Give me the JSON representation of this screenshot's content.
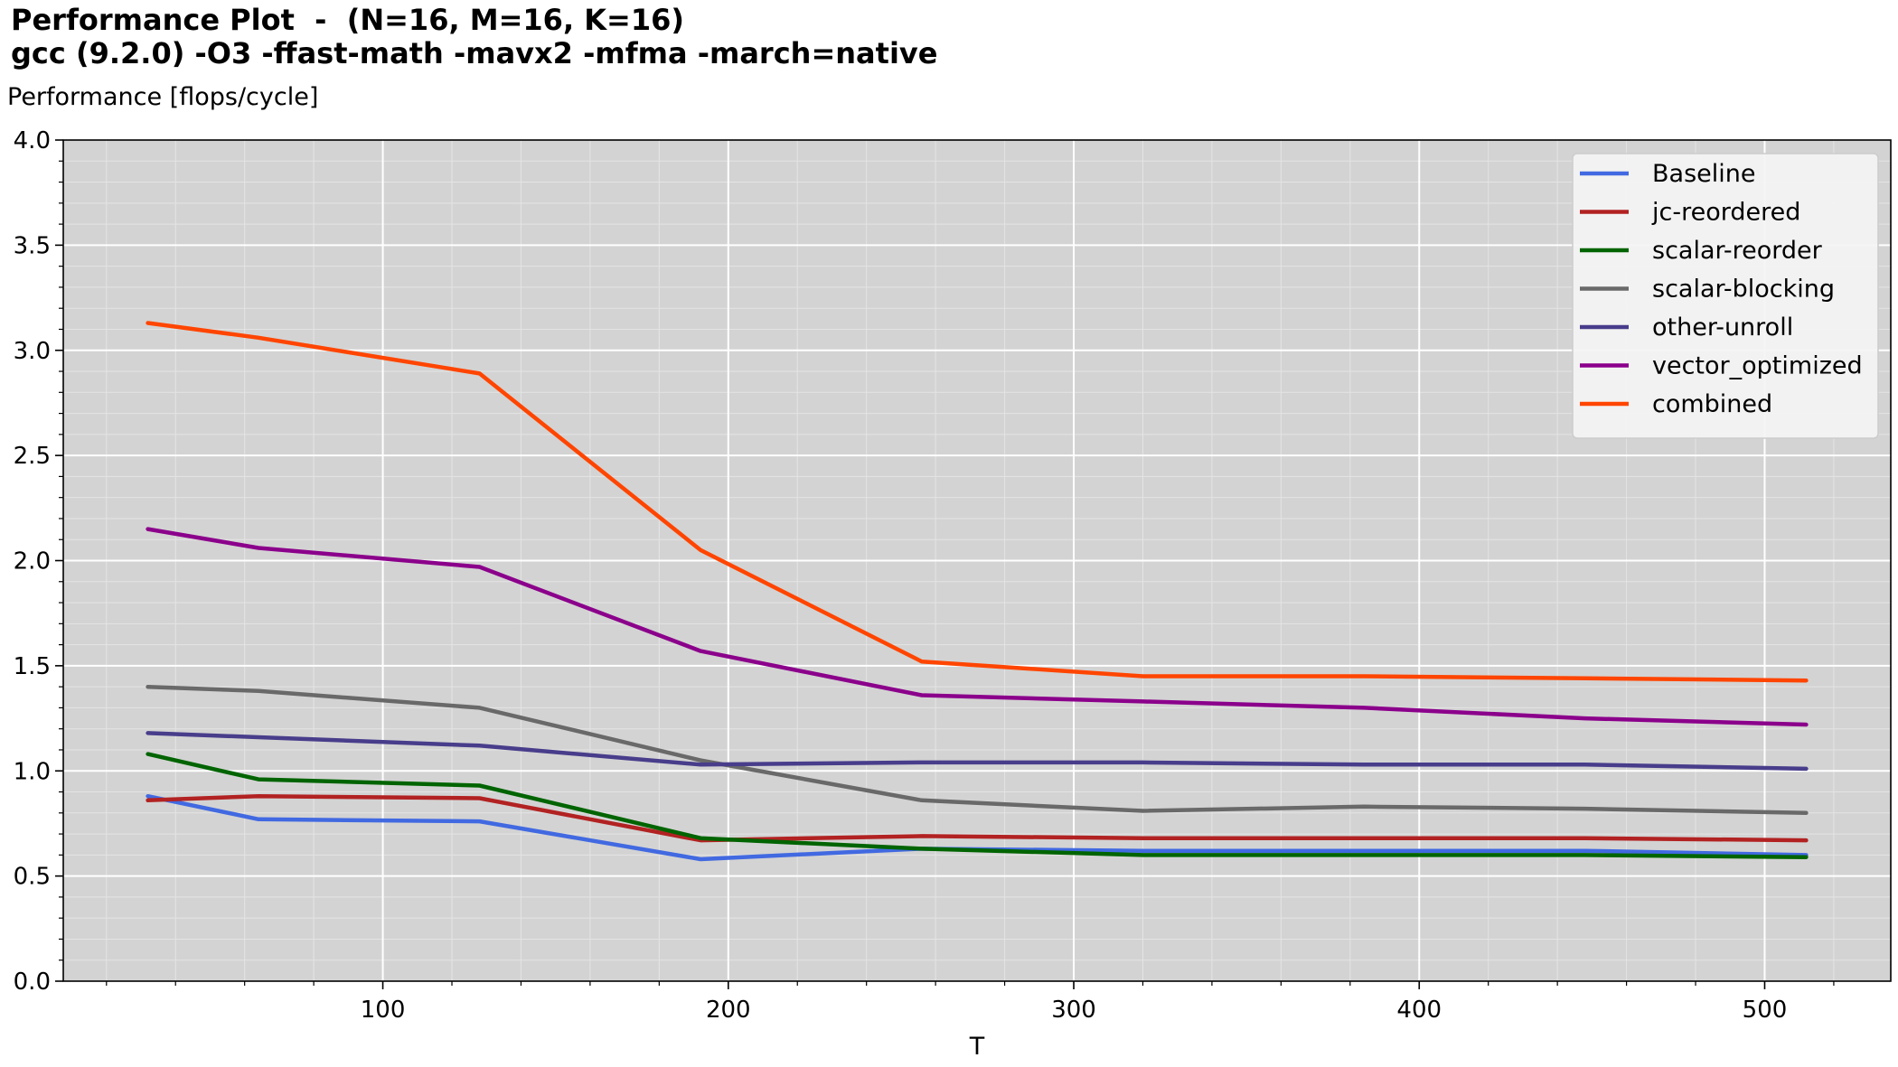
{
  "chart_data": {
    "type": "line",
    "title": "Performance Plot  -  (N=16, M=16, K=16)",
    "subtitle": "gcc (9.2.0) -O3 -ffast-math -mavx2 -mfma -march=native",
    "ylabel": "Performance [flops/cycle]",
    "xlabel": "T",
    "xlim": [
      7.5,
      536.5
    ],
    "ylim": [
      0,
      4.0
    ],
    "x_ticks": [
      100,
      200,
      300,
      400,
      500
    ],
    "y_ticks": [
      0.0,
      0.5,
      1.0,
      1.5,
      2.0,
      2.5,
      3.0,
      3.5,
      4.0
    ],
    "grid": true,
    "legend_position": "top-right",
    "x": [
      32,
      64,
      128,
      192,
      256,
      320,
      384,
      448,
      512
    ],
    "series": [
      {
        "name": "Baseline",
        "color": "#4169e1",
        "values": [
          0.88,
          0.77,
          0.76,
          0.58,
          0.63,
          0.62,
          0.62,
          0.62,
          0.6
        ]
      },
      {
        "name": "jc-reordered",
        "color": "#b22222",
        "values": [
          0.86,
          0.88,
          0.87,
          0.67,
          0.69,
          0.68,
          0.68,
          0.68,
          0.67
        ]
      },
      {
        "name": "scalar-reorder",
        "color": "#006400",
        "values": [
          1.08,
          0.96,
          0.93,
          0.68,
          0.63,
          0.6,
          0.6,
          0.6,
          0.59
        ]
      },
      {
        "name": "scalar-blocking",
        "color": "#696969",
        "values": [
          1.4,
          1.38,
          1.3,
          1.05,
          0.86,
          0.81,
          0.83,
          0.82,
          0.8
        ]
      },
      {
        "name": "other-unroll",
        "color": "#483d8b",
        "values": [
          1.18,
          1.16,
          1.12,
          1.03,
          1.04,
          1.04,
          1.03,
          1.03,
          1.01
        ]
      },
      {
        "name": "vector_optimized",
        "color": "#8b008b",
        "values": [
          2.15,
          2.06,
          1.97,
          1.57,
          1.36,
          1.33,
          1.3,
          1.25,
          1.22
        ]
      },
      {
        "name": "combined",
        "color": "#ff4500",
        "values": [
          3.13,
          3.06,
          2.89,
          2.05,
          1.52,
          1.45,
          1.45,
          1.44,
          1.43
        ]
      }
    ]
  }
}
